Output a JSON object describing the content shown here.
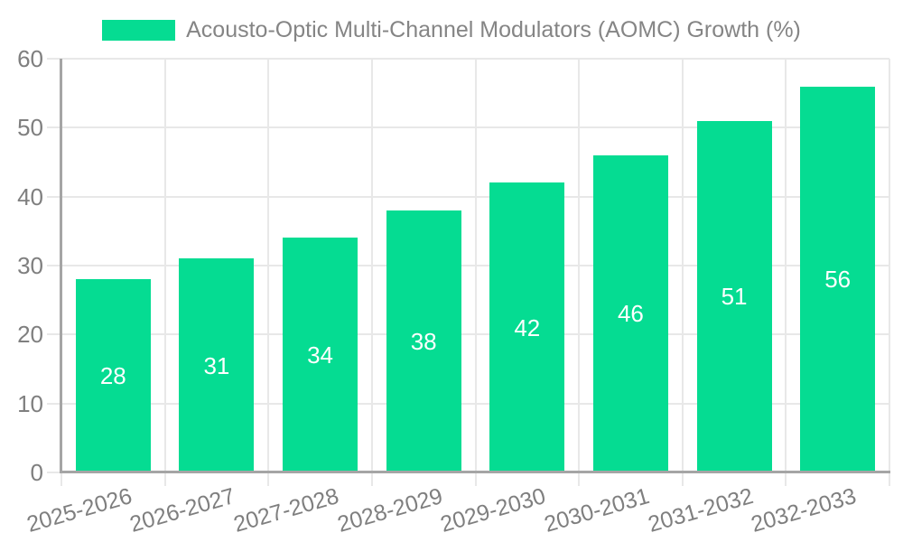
{
  "chart_data": {
    "type": "bar",
    "legend": {
      "label": "Acousto-Optic Multi-Channel Modulators (AOMC) Growth (%)",
      "position": "top-center"
    },
    "categories": [
      "2025-2026",
      "2026-2027",
      "2027-2028",
      "2028-2029",
      "2029-2030",
      "2030-2031",
      "2031-2032",
      "2032-2033"
    ],
    "series": [
      {
        "name": "Acousto-Optic Multi-Channel Modulators (AOMC) Growth (%)",
        "values": [
          28,
          31,
          34,
          38,
          42,
          46,
          51,
          56
        ]
      }
    ],
    "value_labels_position": "inside-center",
    "xlabel": "",
    "ylabel": "",
    "ylim": [
      0,
      60
    ],
    "yticks": [
      0,
      10,
      20,
      30,
      40,
      50,
      60
    ],
    "grid": "both",
    "x_label_rotation_deg": -16,
    "colors": {
      "bar": "#05dc92",
      "value_label": "#ffffff",
      "grid_line": "#e8e8e8",
      "axis_line": "#a5a5a5",
      "tick_text": "#7f7f7f",
      "legend_text": "#858585",
      "background": "#ffffff"
    }
  }
}
